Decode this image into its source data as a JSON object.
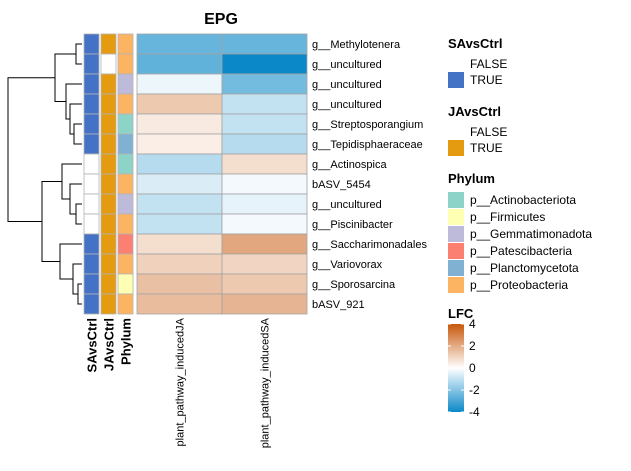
{
  "chart_data": {
    "type": "heatmap",
    "title": "EPG",
    "rows": [
      "g__Methylotenera",
      "g__uncultured",
      "g__uncultured",
      "g__uncultured",
      "g__Streptosporangium",
      "g__Tepidisphaeraceae",
      "g__Actinospica",
      "bASV_5454",
      "g__uncultured",
      "g__Piscinibacter",
      "g__Saccharimonadales",
      "g__Variovorax",
      "g__Sporosarcina",
      "bASV_921"
    ],
    "columns": [
      "plant_pathway_inducedJA",
      "plant_pathway_inducedSA"
    ],
    "values": [
      [
        -2.5,
        -2.5
      ],
      [
        -2.6,
        -4.0
      ],
      [
        -0.3,
        -2.3
      ],
      [
        1.3,
        -1.0
      ],
      [
        0.5,
        -1.0
      ],
      [
        0.4,
        -1.2
      ],
      [
        -1.2,
        0.8
      ],
      [
        -0.6,
        -0.2
      ],
      [
        -1.0,
        -0.4
      ],
      [
        -1.0,
        -0.2
      ],
      [
        0.8,
        2.1
      ],
      [
        1.1,
        1.0
      ],
      [
        1.5,
        1.3
      ],
      [
        1.6,
        1.8
      ]
    ],
    "annotations": {
      "SAvsCtrl": [
        "TRUE",
        "TRUE",
        "TRUE",
        "TRUE",
        "TRUE",
        "TRUE",
        "FALSE",
        "FALSE",
        "FALSE",
        "FALSE",
        "TRUE",
        "TRUE",
        "TRUE",
        "TRUE"
      ],
      "JAvsCtrl": [
        "TRUE",
        "FALSE",
        "TRUE",
        "TRUE",
        "TRUE",
        "TRUE",
        "TRUE",
        "TRUE",
        "TRUE",
        "TRUE",
        "TRUE",
        "TRUE",
        "TRUE",
        "TRUE"
      ],
      "Phylum": [
        "p__Proteobacteria",
        "p__Proteobacteria",
        "p__Gemmatimonadota",
        "p__Proteobacteria",
        "p__Actinobacteriota",
        "p__Planctomycetota",
        "p__Actinobacteriota",
        "p__Proteobacteria",
        "p__Gemmatimonadota",
        "p__Proteobacteria",
        "p__Patescibacteria",
        "p__Proteobacteria",
        "p__Firmicutes",
        "p__Proteobacteria"
      ]
    },
    "annotation_labels": [
      "SAvsCtrl",
      "JAvsCtrl",
      "Phylum"
    ],
    "legends": {
      "SAvsCtrl": {
        "title": "SAvsCtrl",
        "levels": [
          {
            "label": "FALSE",
            "color": "#ffffff"
          },
          {
            "label": "TRUE",
            "color": "#4472c4"
          }
        ]
      },
      "JAvsCtrl": {
        "title": "JAvsCtrl",
        "levels": [
          {
            "label": "FALSE",
            "color": "#ffffff"
          },
          {
            "label": "TRUE",
            "color": "#e49b0f"
          }
        ]
      },
      "Phylum": {
        "title": "Phylum",
        "levels": [
          {
            "label": "p__Actinobacteriota",
            "color": "#8dd3c7"
          },
          {
            "label": "p__Firmicutes",
            "color": "#ffffb3"
          },
          {
            "label": "p__Gemmatimonadota",
            "color": "#bebada"
          },
          {
            "label": "p__Patescibacteria",
            "color": "#fb8072"
          },
          {
            "label": "p__Planctomycetota",
            "color": "#80b1d3"
          },
          {
            "label": "p__Proteobacteria",
            "color": "#fdb462"
          }
        ]
      },
      "LFC": {
        "title": "LFC",
        "ticks": [
          4,
          2,
          0,
          -2,
          -4
        ],
        "range": [
          -4,
          4
        ],
        "colors": {
          "low": "#0b88c8",
          "mid": "#ffffff",
          "high": "#c8580c"
        }
      }
    },
    "dendrogram_rows": "hierarchical clustering of 14 rows"
  }
}
